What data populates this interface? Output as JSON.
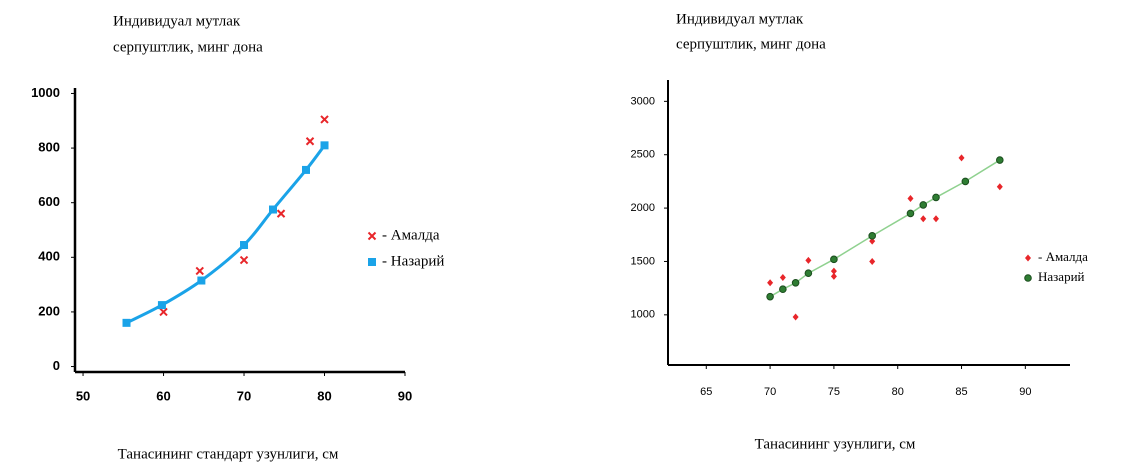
{
  "chart_data": [
    {
      "type": "scatter",
      "ylabel": [
        "Индивидуал мутлак",
        "серпуштлик, минг дона"
      ],
      "xlabel": "Танасининг стандарт узунлиги, см",
      "xlim": [
        49,
        90
      ],
      "xticks": [
        50,
        60,
        70,
        80,
        90
      ],
      "ylim": [
        -20,
        1020
      ],
      "yticks": [
        0,
        200,
        400,
        600,
        800,
        1000
      ],
      "grid": false,
      "legend": "right",
      "series": [
        {
          "name": "- Амалда",
          "color": "#e8262a",
          "marker": "x",
          "line": false,
          "x": [
            60,
            64.5,
            70,
            74.6,
            78.2,
            80
          ],
          "values": [
            200,
            350,
            390,
            560,
            825,
            905
          ]
        },
        {
          "name": "- Назарий",
          "color": "#1aa3e8",
          "marker": "square",
          "line": true,
          "x": [
            55.4,
            59.8,
            64.7,
            70,
            73.6,
            77.7,
            80
          ],
          "values": [
            160,
            225,
            315,
            445,
            575,
            720,
            810
          ]
        }
      ]
    },
    {
      "type": "scatter",
      "ylabel": [
        "Индивидуал мутлак",
        "серпуштлик, минг дона"
      ],
      "xlabel": "Танасининг узунлиги, см",
      "xlim": [
        62,
        93.5
      ],
      "xticks": [
        65,
        70,
        75,
        80,
        85,
        90
      ],
      "ylim": [
        530,
        3200
      ],
      "yticks": [
        1000,
        1500,
        2000,
        2500,
        3000
      ],
      "grid": false,
      "legend": "right",
      "series": [
        {
          "name": "- Амалда",
          "color": "#e8262a",
          "marker": "diamond",
          "line": false,
          "x": [
            70,
            71,
            72,
            73,
            75,
            75,
            78,
            78,
            81,
            82,
            83,
            85,
            88
          ],
          "values": [
            1300,
            1350,
            980,
            1510,
            1410,
            1360,
            1500,
            1690,
            2090,
            1900,
            1900,
            2470,
            2200
          ]
        },
        {
          "name": "Назарий",
          "color": "#2e7d32",
          "marker": "circle",
          "line": true,
          "line_color": "#8fd18f",
          "x": [
            70,
            71,
            72,
            73,
            75,
            78,
            81,
            82,
            83,
            85.3,
            88
          ],
          "values": [
            1170,
            1240,
            1300,
            1390,
            1520,
            1740,
            1950,
            2030,
            2100,
            2250,
            2450
          ]
        }
      ]
    }
  ]
}
